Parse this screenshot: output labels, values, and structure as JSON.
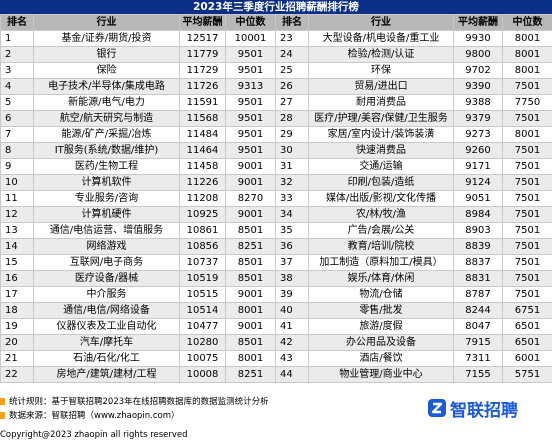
{
  "title": "2023年三季度行业招聘薪酬排行榜",
  "headers": [
    "排名",
    "行业",
    "平均薪酬",
    "中位数"
  ],
  "rows": [
    {
      "left": {
        "rank": "1",
        "industry": "基金/证券/期货/投资",
        "avg": "12517",
        "median": "10001"
      },
      "right": {
        "rank": "23",
        "industry": "大型设备/机电设备/重工业",
        "avg": "9930",
        "median": "8001"
      }
    },
    {
      "left": {
        "rank": "2",
        "industry": "银行",
        "avg": "11779",
        "median": "9501"
      },
      "right": {
        "rank": "24",
        "industry": "检验/检测/认证",
        "avg": "9800",
        "median": "8001"
      }
    },
    {
      "left": {
        "rank": "3",
        "industry": "保险",
        "avg": "11729",
        "median": "9501"
      },
      "right": {
        "rank": "25",
        "industry": "环保",
        "avg": "9702",
        "median": "8001"
      }
    },
    {
      "left": {
        "rank": "4",
        "industry": "电子技术/半导体/集成电路",
        "avg": "11726",
        "median": "9313"
      },
      "right": {
        "rank": "26",
        "industry": "贸易/进出口",
        "avg": "9390",
        "median": "7501"
      }
    },
    {
      "left": {
        "rank": "5",
        "industry": "新能源/电气/电力",
        "avg": "11591",
        "median": "9501"
      },
      "right": {
        "rank": "27",
        "industry": "耐用消费品",
        "avg": "9388",
        "median": "7750"
      }
    },
    {
      "left": {
        "rank": "6",
        "industry": "航空/航天研究与制造",
        "avg": "11568",
        "median": "9501"
      },
      "right": {
        "rank": "28",
        "industry": "医疗/护理/美容/保健/卫生服务",
        "avg": "9379",
        "median": "7501"
      }
    },
    {
      "left": {
        "rank": "7",
        "industry": "能源/矿产/采掘/冶炼",
        "avg": "11484",
        "median": "9501"
      },
      "right": {
        "rank": "29",
        "industry": "家居/室内设计/装饰装潢",
        "avg": "9273",
        "median": "8001"
      }
    },
    {
      "left": {
        "rank": "8",
        "industry": "IT服务(系统/数据/维护)",
        "avg": "11464",
        "median": "9501"
      },
      "right": {
        "rank": "30",
        "industry": "快速消费品",
        "avg": "9260",
        "median": "7501"
      }
    },
    {
      "left": {
        "rank": "9",
        "industry": "医药/生物工程",
        "avg": "11458",
        "median": "9001"
      },
      "right": {
        "rank": "31",
        "industry": "交通/运输",
        "avg": "9171",
        "median": "7501"
      }
    },
    {
      "left": {
        "rank": "10",
        "industry": "计算机软件",
        "avg": "11226",
        "median": "9001"
      },
      "right": {
        "rank": "32",
        "industry": "印刷/包装/造纸",
        "avg": "9124",
        "median": "7501"
      }
    },
    {
      "left": {
        "rank": "11",
        "industry": "专业服务/咨询",
        "avg": "11208",
        "median": "8270"
      },
      "right": {
        "rank": "33",
        "industry": "媒体/出版/影视/文化传播",
        "avg": "9051",
        "median": "7501"
      }
    },
    {
      "left": {
        "rank": "12",
        "industry": "计算机硬件",
        "avg": "10925",
        "median": "9001"
      },
      "right": {
        "rank": "34",
        "industry": "农/林/牧/渔",
        "avg": "8984",
        "median": "7501"
      }
    },
    {
      "left": {
        "rank": "13",
        "industry": "通信/电信运营、增值服务",
        "avg": "10861",
        "median": "8501"
      },
      "right": {
        "rank": "35",
        "industry": "广告/会展/公关",
        "avg": "8903",
        "median": "7501"
      }
    },
    {
      "left": {
        "rank": "14",
        "industry": "网络游戏",
        "avg": "10856",
        "median": "8251"
      },
      "right": {
        "rank": "36",
        "industry": "教育/培训/院校",
        "avg": "8839",
        "median": "7501"
      }
    },
    {
      "left": {
        "rank": "15",
        "industry": "互联网/电子商务",
        "avg": "10737",
        "median": "8501"
      },
      "right": {
        "rank": "37",
        "industry": "加工制造（原料加工/模具）",
        "avg": "8837",
        "median": "7501"
      }
    },
    {
      "left": {
        "rank": "16",
        "industry": "医疗设备/器械",
        "avg": "10519",
        "median": "8501"
      },
      "right": {
        "rank": "38",
        "industry": "娱乐/体育/休闲",
        "avg": "8831",
        "median": "7501"
      }
    },
    {
      "left": {
        "rank": "17",
        "industry": "中介服务",
        "avg": "10515",
        "median": "9001"
      },
      "right": {
        "rank": "39",
        "industry": "物流/仓储",
        "avg": "8787",
        "median": "7501"
      }
    },
    {
      "left": {
        "rank": "18",
        "industry": "通信/电信/网络设备",
        "avg": "10514",
        "median": "8001"
      },
      "right": {
        "rank": "40",
        "industry": "零售/批发",
        "avg": "8244",
        "median": "6751"
      }
    },
    {
      "left": {
        "rank": "19",
        "industry": "仪器仪表及工业自动化",
        "avg": "10477",
        "median": "9001"
      },
      "right": {
        "rank": "41",
        "industry": "旅游/度假",
        "avg": "8047",
        "median": "6501"
      }
    },
    {
      "left": {
        "rank": "20",
        "industry": "汽车/摩托车",
        "avg": "10280",
        "median": "8501"
      },
      "right": {
        "rank": "42",
        "industry": "办公用品及设备",
        "avg": "7915",
        "median": "6501"
      }
    },
    {
      "left": {
        "rank": "21",
        "industry": "石油/石化/化工",
        "avg": "10075",
        "median": "8001"
      },
      "right": {
        "rank": "43",
        "industry": "酒店/餐饮",
        "avg": "7311",
        "median": "6001"
      }
    },
    {
      "left": {
        "rank": "22",
        "industry": "房地产/建筑/建材/工程",
        "avg": "10008",
        "median": "8251"
      },
      "right": {
        "rank": "44",
        "industry": "物业管理/商业中心",
        "avg": "7155",
        "median": "5751"
      }
    }
  ],
  "footer": {
    "method": "统计规则：基于智联招聘2023年在线招聘数据库的数据监测统计分析",
    "source": "数据来源：智联招聘（www.zhaopin.com）",
    "copyright": "Copyright@2023 zhaopin all rights reserved"
  },
  "logo": {
    "text": "智联招聘",
    "color": "#1c5bd8"
  },
  "colors": {
    "title_bg": "#0b2e86",
    "header_bg": "#b8b8b8",
    "stripe": "#ebebeb",
    "accent": "#f5a21a"
  }
}
